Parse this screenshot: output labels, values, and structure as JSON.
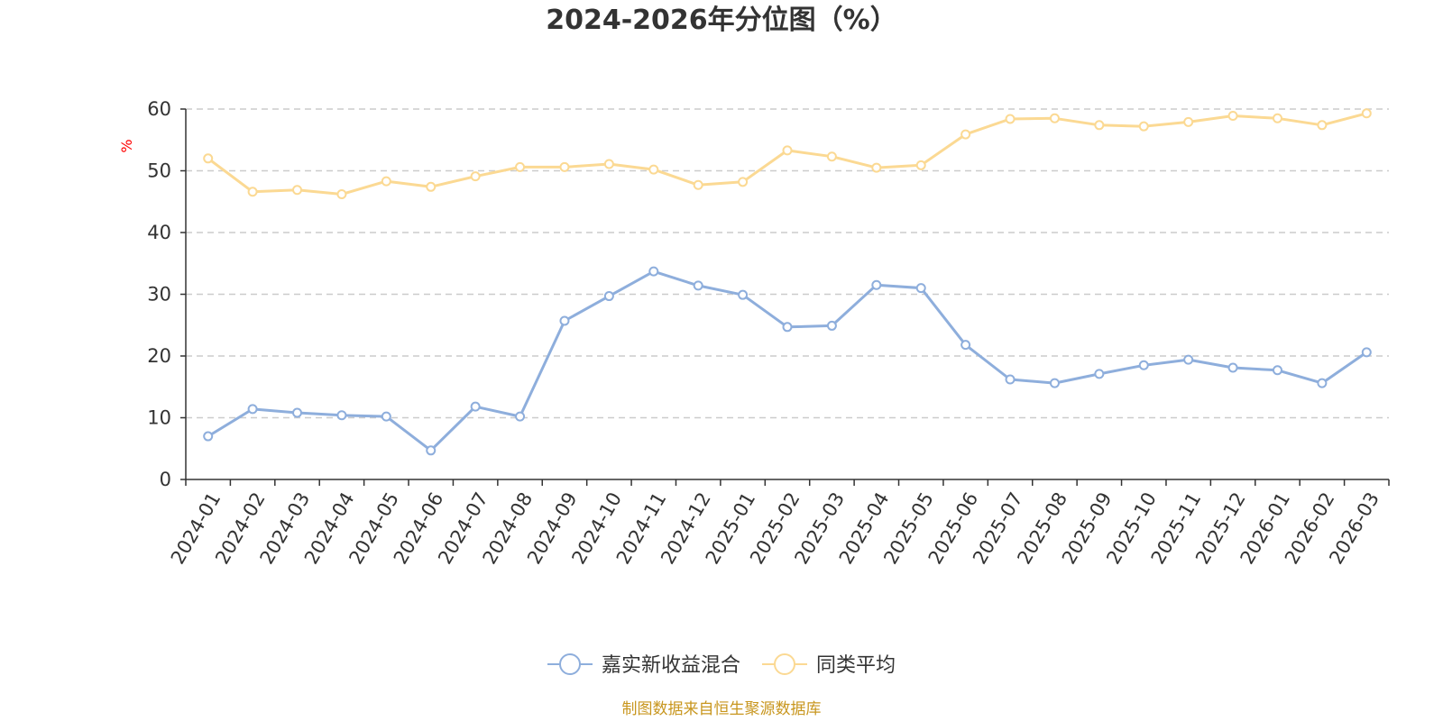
{
  "chart_data": {
    "type": "line",
    "title": "2024-2026年分位图（%）",
    "ylabel": "%",
    "xlabel": "",
    "ylim": [
      0,
      60
    ],
    "yticks": [
      0,
      10,
      20,
      30,
      40,
      50,
      60
    ],
    "grid": true,
    "legend_position": "bottom-center",
    "categories": [
      "2024-01",
      "2024-02",
      "2024-03",
      "2024-04",
      "2024-05",
      "2024-06",
      "2024-07",
      "2024-08",
      "2024-09",
      "2024-10",
      "2024-11",
      "2024-12",
      "2025-01",
      "2025-02",
      "2025-03",
      "2025-04",
      "2025-05",
      "2025-06",
      "2025-07",
      "2025-08",
      "2025-09",
      "2025-10",
      "2025-11",
      "2025-12",
      "2026-01",
      "2026-02",
      "2026-03"
    ],
    "series": [
      {
        "name": "嘉实新收益混合",
        "color": "#8eaedc",
        "values": [
          7.0,
          11.4,
          10.8,
          10.4,
          10.2,
          4.7,
          11.8,
          10.2,
          25.7,
          29.7,
          33.7,
          31.4,
          29.9,
          24.7,
          24.9,
          31.5,
          31.0,
          21.8,
          16.2,
          15.6,
          17.1,
          18.5,
          19.4,
          18.1,
          17.7,
          15.6,
          20.6
        ]
      },
      {
        "name": "同类平均",
        "color": "#fbd993",
        "values": [
          52.0,
          46.6,
          46.9,
          46.2,
          48.3,
          47.4,
          49.1,
          50.6,
          50.6,
          51.1,
          50.2,
          47.7,
          48.2,
          53.3,
          52.3,
          50.5,
          50.9,
          55.9,
          58.4,
          58.5,
          57.4,
          57.2,
          57.9,
          58.9,
          58.5,
          57.4,
          59.3
        ]
      }
    ]
  },
  "colors": {
    "axis": "#333333",
    "grid": "#cccccc",
    "unit": "#ff0000",
    "source": "#c8961e"
  },
  "source_note": "制图数据来自恒生聚源数据库"
}
